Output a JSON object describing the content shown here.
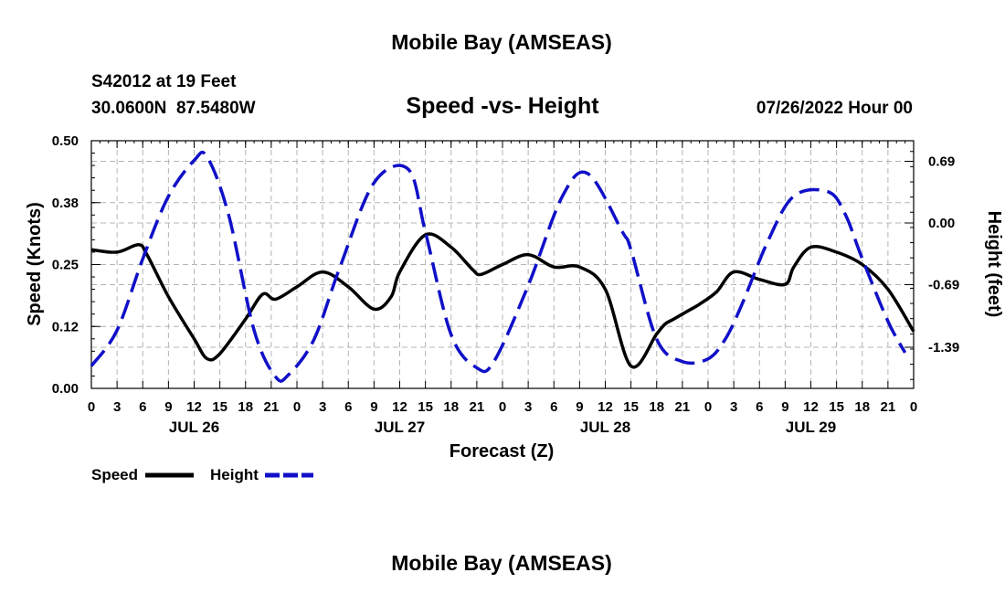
{
  "page_title": "Mobile Bay (AMSEAS)",
  "footer_title": "Mobile Bay (AMSEAS)",
  "station": {
    "id_line": "S42012 at 19 Feet",
    "coord_line": "30.0600N  87.5480W"
  },
  "run_time": "07/26/2022 Hour 00",
  "legend": {
    "speed_label": "Speed",
    "height_label": "Height",
    "speed_color": "#000000",
    "height_color": "#1010c8"
  },
  "chart_data": {
    "type": "line",
    "title": "Speed -vs- Height",
    "xlabel": "Forecast (Z)",
    "ylabel_left": "Speed (Knots)",
    "ylabel_right": "Height (feet)",
    "x_range_hours": [
      0,
      96
    ],
    "ylim_left": [
      0,
      0.5
    ],
    "ylim_right": [
      -1.85,
      0.92
    ],
    "grid": true,
    "legend_position": "bottom-left",
    "left_ticks": [
      "0.00",
      "0.12",
      "0.25",
      "0.38",
      "0.50"
    ],
    "right_ticks": [
      "0.69",
      "0.00",
      "-0.69",
      "-1.39"
    ],
    "x_tick_labels": [
      "0",
      "3",
      "6",
      "9",
      "12",
      "15",
      "18",
      "21",
      "0",
      "3",
      "6",
      "9",
      "12",
      "15",
      "18",
      "21",
      "0",
      "3",
      "6",
      "9",
      "12",
      "15",
      "18",
      "21",
      "0",
      "3",
      "6",
      "9",
      "12",
      "15",
      "18",
      "21",
      "0"
    ],
    "day_labels": [
      {
        "label": "JUL 26",
        "hour": 12
      },
      {
        "label": "JUL 27",
        "hour": 36
      },
      {
        "label": "JUL 28",
        "hour": 60
      },
      {
        "label": "JUL 29",
        "hour": 84
      }
    ],
    "series": [
      {
        "name": "Speed",
        "axis": "left",
        "x": [
          0,
          3,
          5.5,
          6.5,
          9,
          12,
          13.5,
          15,
          18,
          20,
          21.5,
          24,
          27,
          30,
          33,
          35,
          36,
          39,
          42,
          44.5,
          45.5,
          48,
          51,
          54,
          57,
          60,
          63,
          66,
          67,
          68,
          69.5,
          71,
          73,
          75,
          78,
          81,
          82,
          84,
          87,
          90,
          93,
          96
        ],
        "y": [
          0.28,
          0.275,
          0.29,
          0.27,
          0.185,
          0.1,
          0.06,
          0.07,
          0.14,
          0.19,
          0.18,
          0.205,
          0.235,
          0.205,
          0.16,
          0.185,
          0.235,
          0.31,
          0.285,
          0.24,
          0.23,
          0.25,
          0.27,
          0.245,
          0.245,
          0.2,
          0.045,
          0.11,
          0.13,
          0.14,
          0.155,
          0.17,
          0.195,
          0.235,
          0.22,
          0.21,
          0.245,
          0.285,
          0.275,
          0.25,
          0.2,
          0.115
        ]
      },
      {
        "name": "Height",
        "axis": "right",
        "x": [
          0,
          3,
          6,
          9,
          12,
          13.5,
          16,
          19,
          21.5,
          23,
          26,
          29,
          33,
          37,
          39,
          42,
          45,
          47,
          51,
          55,
          58,
          62,
          63,
          66,
          69,
          72,
          74,
          76,
          79,
          82,
          86,
          88,
          90,
          93,
          95
        ],
        "y": [
          -1.6,
          -1.2,
          -0.4,
          0.3,
          0.7,
          0.74,
          0.1,
          -1.2,
          -1.72,
          -1.7,
          -1.3,
          -0.5,
          0.45,
          0.6,
          -0.1,
          -1.25,
          -1.62,
          -1.55,
          -0.7,
          0.3,
          0.55,
          -0.1,
          -0.3,
          -1.3,
          -1.55,
          -1.52,
          -1.3,
          -0.9,
          -0.2,
          0.3,
          0.35,
          0.1,
          -0.4,
          -1.1,
          -1.45
        ]
      }
    ]
  }
}
